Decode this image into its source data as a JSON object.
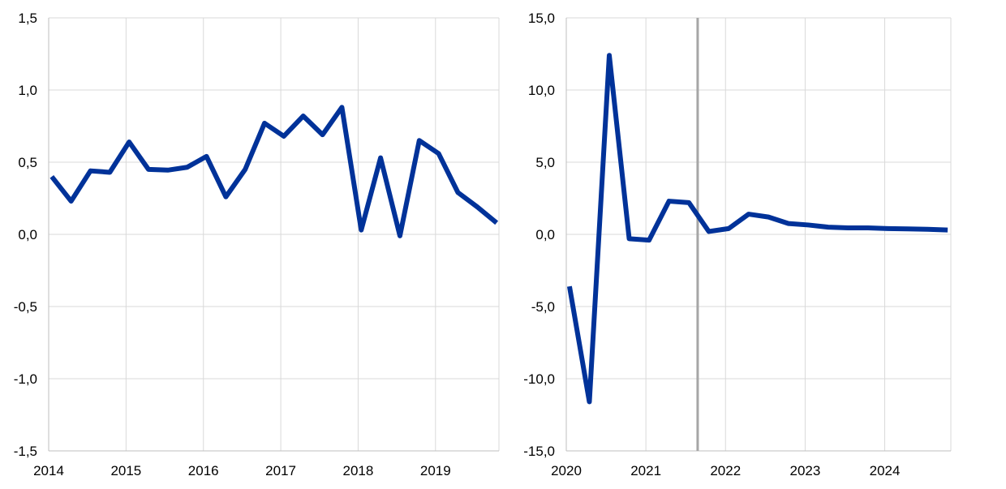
{
  "chart_data": [
    {
      "type": "line",
      "xlabel": "",
      "ylabel": "",
      "ylim": [
        -1.5,
        1.5
      ],
      "yticks": [
        "1,5",
        "1,0",
        "0,5",
        "0,0",
        "-0,5",
        "-1,0",
        "-1,5"
      ],
      "ytick_values": [
        1.5,
        1.0,
        0.5,
        0.0,
        -0.5,
        -1.0,
        -1.5
      ],
      "xticks": [
        "2014",
        "2015",
        "2016",
        "2017",
        "2018",
        "2019"
      ],
      "grid": true,
      "frequency": "quarterly",
      "start_period": "2014 Q1",
      "series": [
        {
          "color": "#003299",
          "values": [
            0.4,
            0.23,
            0.44,
            0.43,
            0.64,
            0.45,
            0.445,
            0.465,
            0.54,
            0.26,
            0.45,
            0.77,
            0.68,
            0.82,
            0.69,
            0.88,
            0.03,
            0.53,
            -0.01,
            0.65,
            0.56,
            0.29,
            0.19,
            0.08
          ]
        }
      ]
    },
    {
      "type": "line",
      "xlabel": "",
      "ylabel": "",
      "ylim": [
        -15,
        15
      ],
      "yticks": [
        "15,0",
        "10,0",
        "5,0",
        "0,0",
        "-5,0",
        "-10,0",
        "-15,0"
      ],
      "ytick_values": [
        15,
        10,
        5,
        0,
        -5,
        -10,
        -15
      ],
      "xticks": [
        "2020",
        "2021",
        "2022",
        "2023",
        "2024"
      ],
      "grid": true,
      "frequency": "quarterly",
      "start_period": "2020 Q1",
      "vertical_marker": {
        "x": 2021.65,
        "color": "#a6a6a6"
      },
      "series": [
        {
          "color": "#003299",
          "values": [
            -3.6,
            -11.6,
            12.4,
            -0.3,
            -0.4,
            2.3,
            2.2,
            0.2,
            0.4,
            1.4,
            1.2,
            0.75,
            0.65,
            0.5,
            0.45,
            0.45,
            0.4,
            0.38,
            0.35,
            0.3
          ]
        }
      ]
    }
  ]
}
